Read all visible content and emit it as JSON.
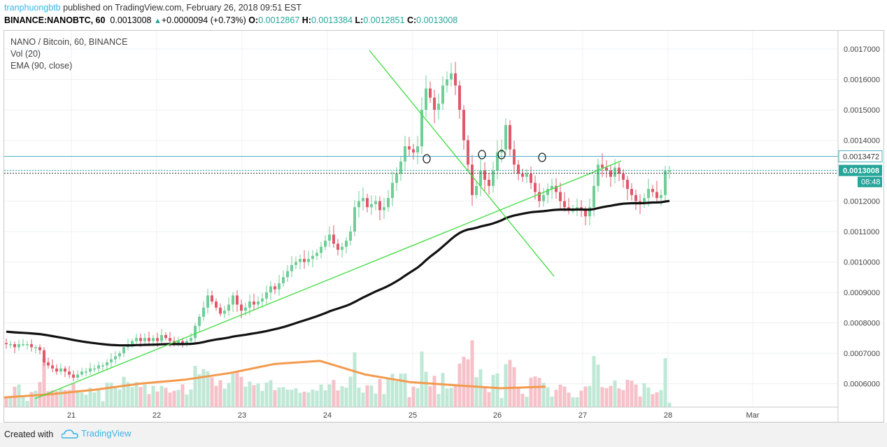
{
  "header": {
    "user": "tranphuongbtb",
    "published_text": " published on TradingView.com, February 26, 2018 09:51 EST"
  },
  "ticker": {
    "symbol": "BINANCE:NANOBTC, 60",
    "price": "0.0013008",
    "change": "+0.0000094 (+0.73%)",
    "o_label": "O:",
    "o": "0.0012867",
    "h_label": "H:",
    "h": "0.0013384",
    "l_label": "L:",
    "l": "0.0012851",
    "c_label": "C:",
    "c": "0.0013008"
  },
  "legend": {
    "title": "NANO / Bitcoin, 60, BINANCE",
    "vol": "Vol (20)",
    "ema": "EMA (90, close)"
  },
  "footer": {
    "created_with": "Created with",
    "brand": "TradingView"
  },
  "colors": {
    "up": "#6fcf97",
    "down": "#e0596b",
    "ema": "#111111",
    "vol_ma": "#f39a4d",
    "trend": "#3ddc3d",
    "hline": "#4fb0c6",
    "price_tag": "#26a69a"
  },
  "chart_data": {
    "type": "candlestick",
    "y_axis_ticks": [
      "0.0017000",
      "0.0016000",
      "0.0015000",
      "0.0014000",
      "0.0013000",
      "0.0012000",
      "0.0011000",
      "0.0010000",
      "0.0009000",
      "0.0008000",
      "0.0007000",
      "0.0006000"
    ],
    "x_axis_ticks": [
      "21",
      "22",
      "23",
      "24",
      "25",
      "26",
      "27",
      "28",
      "Mar"
    ],
    "ylim": [
      0.000545,
      0.001735
    ],
    "horizontal_line": 0.0013472,
    "horizontal_line_label": "0.0013472",
    "last_price": 0.0013008,
    "last_price_label": "0.0013008",
    "countdown_label": "08:48",
    "closes": [
      0.00073,
      0.00073,
      0.00072,
      0.00073,
      0.00073,
      0.00073,
      0.00072,
      0.00072,
      0.00071,
      0.00067,
      0.00066,
      0.00065,
      0.00064,
      0.00065,
      0.00064,
      0.00063,
      0.00062,
      0.00063,
      0.00064,
      0.00064,
      0.00065,
      0.00065,
      0.00066,
      0.00066,
      0.00067,
      0.00068,
      0.00069,
      0.0007,
      0.00072,
      0.00073,
      0.00074,
      0.00075,
      0.00074,
      0.00075,
      0.00074,
      0.00075,
      0.00074,
      0.00076,
      0.00075,
      0.00074,
      0.00073,
      0.00074,
      0.00073,
      0.00074,
      0.00075,
      0.00079,
      0.00082,
      0.00085,
      0.00089,
      0.00087,
      0.00085,
      0.00083,
      0.00084,
      0.00086,
      0.00089,
      0.00086,
      0.00084,
      0.00085,
      0.00087,
      0.00086,
      0.00087,
      0.00088,
      0.0009,
      0.00092,
      0.00091,
      0.00093,
      0.00095,
      0.00097,
      0.00099,
      0.001,
      0.00101,
      0.001,
      0.00101,
      0.00102,
      0.00103,
      0.00105,
      0.00107,
      0.00109,
      0.00106,
      0.00104,
      0.00105,
      0.00107,
      0.0011,
      0.00118,
      0.0012,
      0.00121,
      0.00118,
      0.00119,
      0.0012,
      0.00117,
      0.00118,
      0.00121,
      0.00126,
      0.00129,
      0.00133,
      0.00138,
      0.00137,
      0.00136,
      0.00138,
      0.0015,
      0.00157,
      0.00154,
      0.0015,
      0.00152,
      0.00158,
      0.0016,
      0.00162,
      0.00158,
      0.0015,
      0.0014,
      0.00132,
      0.00122,
      0.00125,
      0.0013,
      0.00127,
      0.00125,
      0.0013,
      0.00136,
      0.00137,
      0.00145,
      0.00137,
      0.00132,
      0.00129,
      0.00128,
      0.00129,
      0.00126,
      0.00123,
      0.0012,
      0.00122,
      0.00124,
      0.00125,
      0.00123,
      0.0012,
      0.00118,
      0.00117,
      0.00117,
      0.00118,
      0.00117,
      0.00115,
      0.00118,
      0.00125,
      0.00132,
      0.00131,
      0.0013,
      0.00128,
      0.00131,
      0.00129,
      0.00127,
      0.00124,
      0.00122,
      0.0012,
      0.00119,
      0.00121,
      0.00124,
      0.00123,
      0.00121,
      0.00122,
      0.0013,
      0.0013
    ],
    "volume_ma_approx": [
      0.000555,
      0.000565,
      0.00058,
      0.0006,
      0.000613,
      0.000635,
      0.000665,
      0.000675,
      0.00063,
      0.000605,
      0.000595,
      0.000585,
      0.00059
    ]
  }
}
